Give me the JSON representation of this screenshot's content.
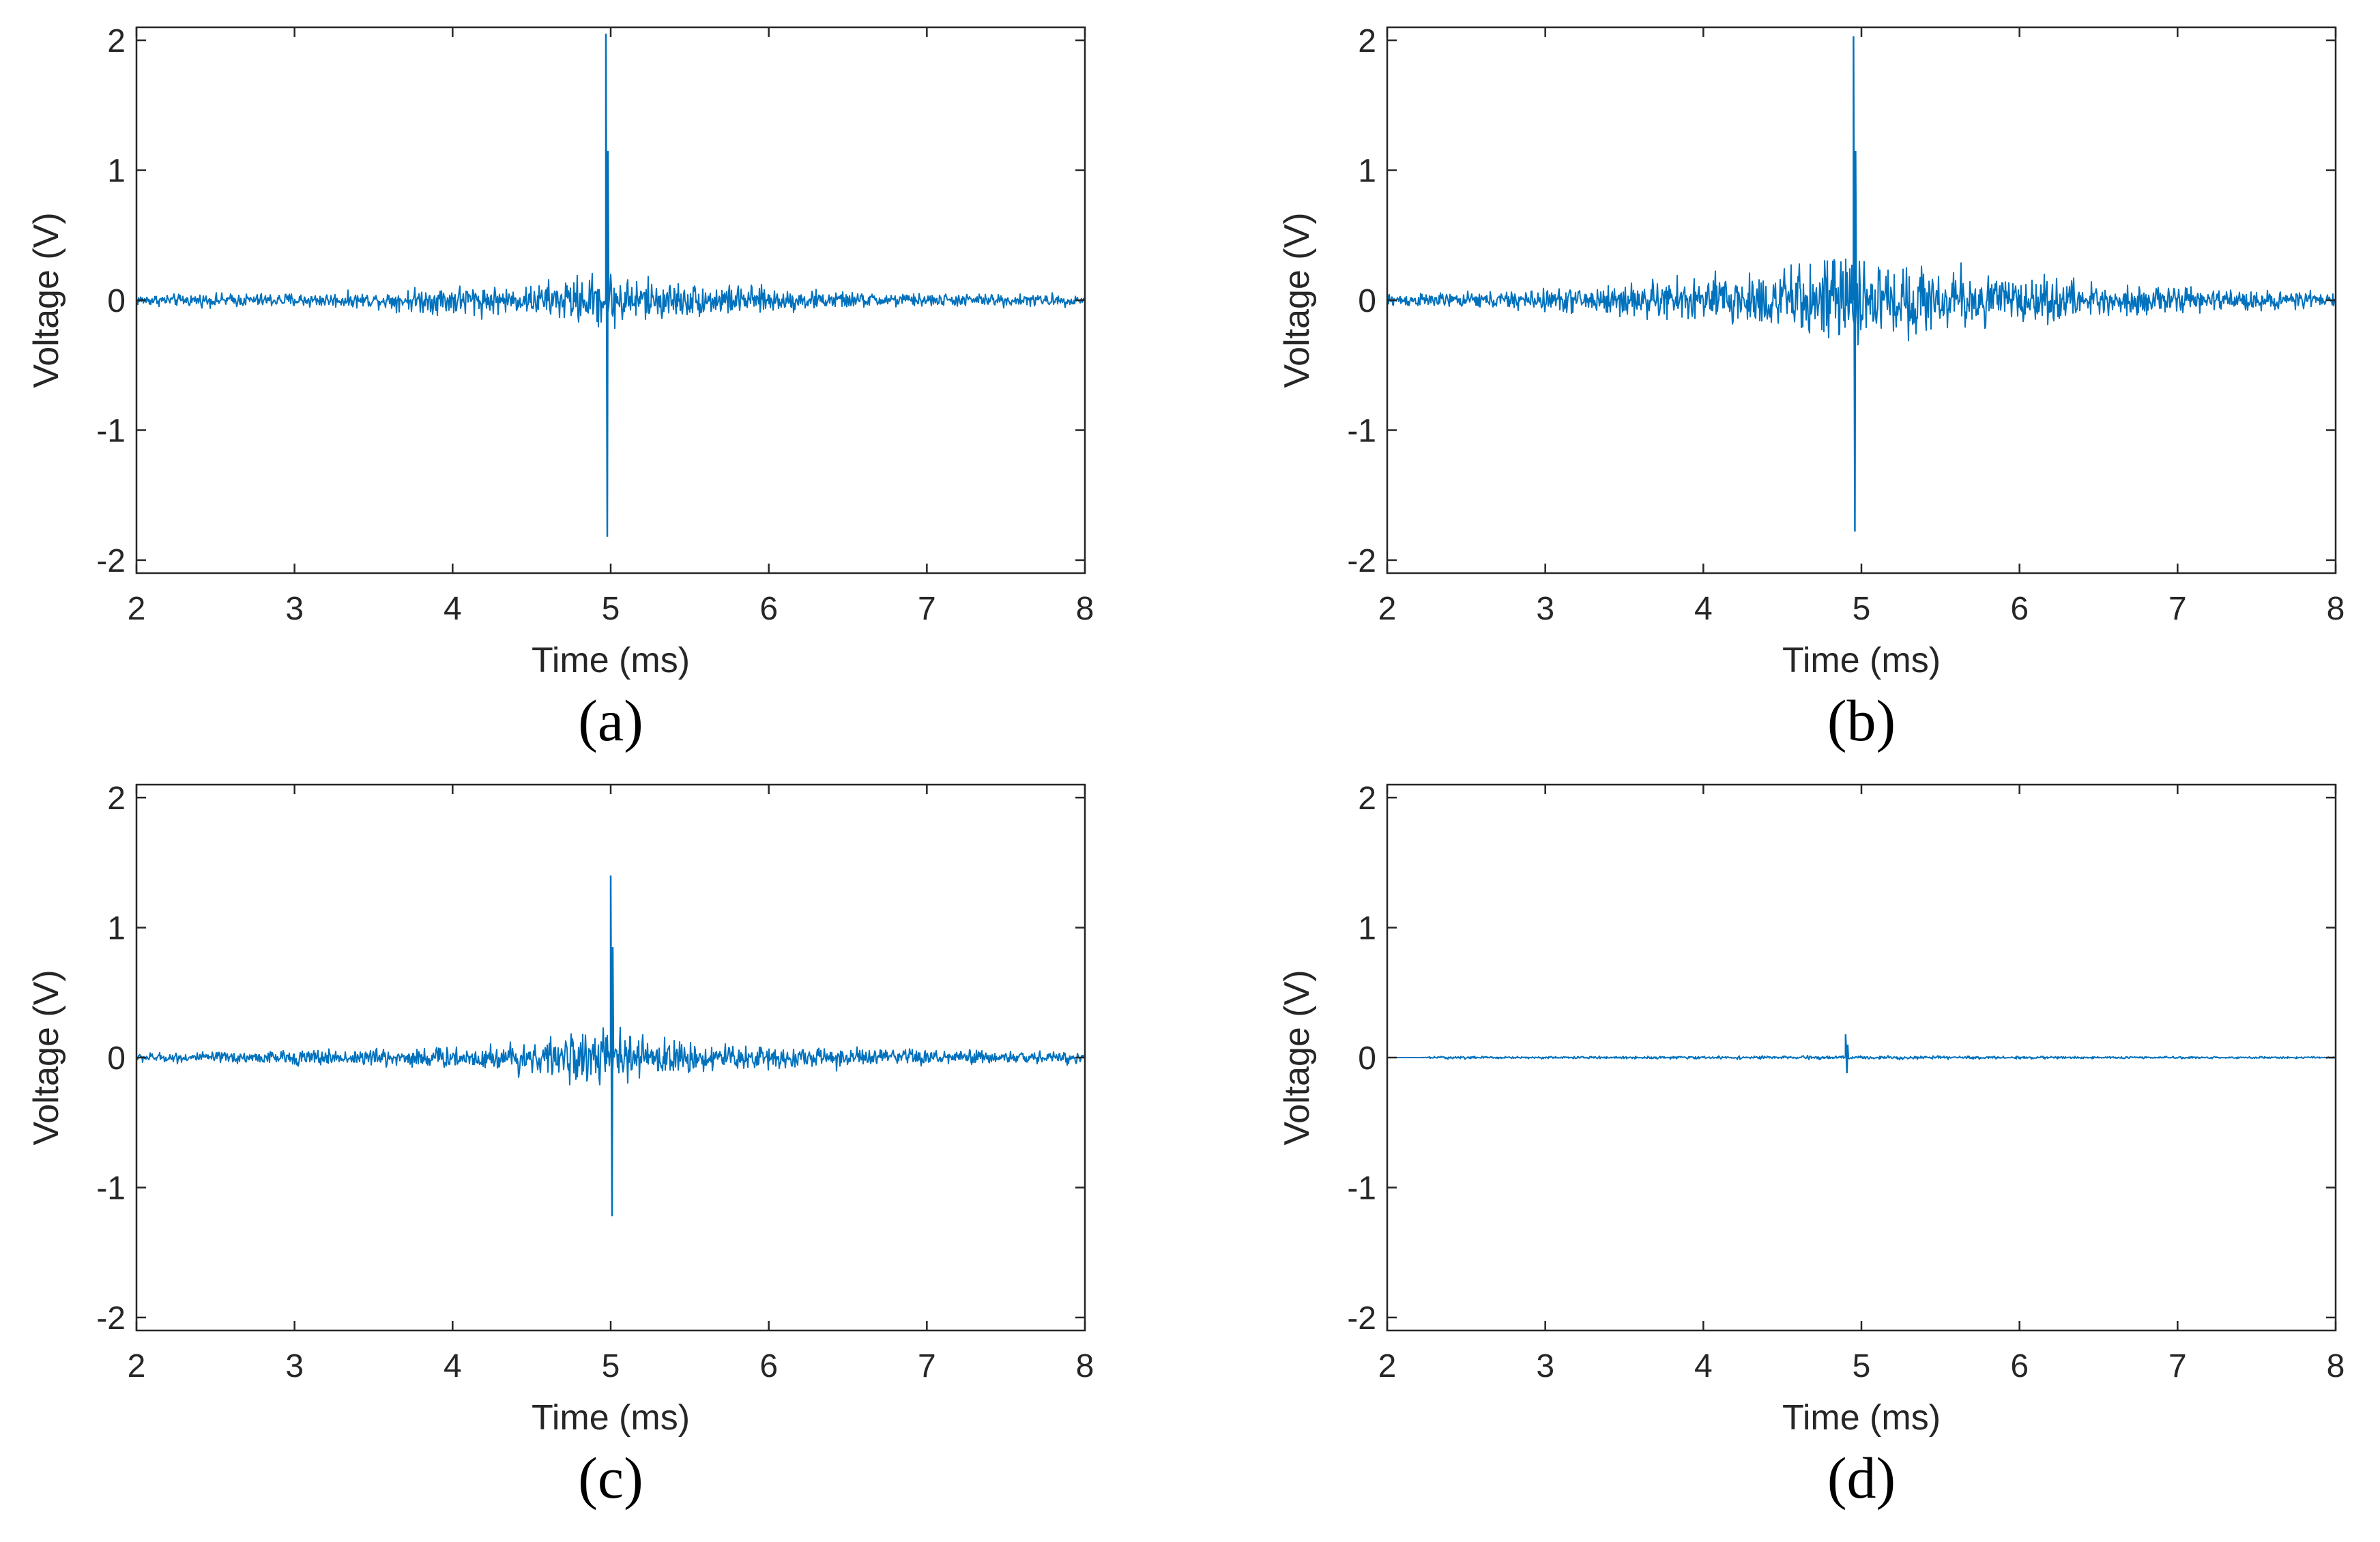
{
  "line_color": "#0072BD",
  "axis_color": "#262626",
  "chart_data": [
    {
      "type": "line",
      "caption": "(a)",
      "xlabel": "Time (ms)",
      "ylabel": "Voltage (V)",
      "xlim": [
        2,
        8
      ],
      "ylim": [
        -2.1,
        2.1
      ],
      "xticks": [
        2,
        3,
        4,
        5,
        6,
        7,
        8
      ],
      "yticks": [
        -2,
        -1,
        0,
        1,
        2
      ],
      "xtick_labels": [
        "2",
        "3",
        "4",
        "5",
        "6",
        "7",
        "8"
      ],
      "ytick_labels": [
        "-2",
        "-1",
        "0",
        "1",
        "2"
      ],
      "grid": false,
      "envelope": {
        "t": [
          2.0,
          2.5,
          3.0,
          3.5,
          3.8,
          4.1,
          4.4,
          4.6,
          4.8,
          5.0,
          5.2,
          5.5,
          5.8,
          6.2,
          6.6,
          7.0,
          7.5,
          8.0
        ],
        "amp": [
          0.06,
          0.07,
          0.08,
          0.08,
          0.14,
          0.18,
          0.13,
          0.2,
          0.26,
          0.3,
          0.24,
          0.18,
          0.16,
          0.11,
          0.08,
          0.07,
          0.07,
          0.06
        ]
      },
      "spike": {
        "t": 4.97,
        "max": 2.05,
        "min": -1.82,
        "secondary": 1.15
      }
    },
    {
      "type": "line",
      "caption": "(b)",
      "xlabel": "Time (ms)",
      "ylabel": "Voltage (V)",
      "xlim": [
        2,
        8
      ],
      "ylim": [
        -2.1,
        2.1
      ],
      "xticks": [
        2,
        3,
        4,
        5,
        6,
        7,
        8
      ],
      "yticks": [
        -2,
        -1,
        0,
        1,
        2
      ],
      "xtick_labels": [
        "2",
        "3",
        "4",
        "5",
        "6",
        "7",
        "8"
      ],
      "ytick_labels": [
        "-2",
        "-1",
        "0",
        "1",
        "2"
      ],
      "grid": false,
      "envelope": {
        "t": [
          2.0,
          2.5,
          3.0,
          3.5,
          4.0,
          4.5,
          4.8,
          5.0,
          5.3,
          5.6,
          6.0,
          6.5,
          7.0,
          7.5,
          8.0
        ],
        "amp": [
          0.07,
          0.08,
          0.12,
          0.18,
          0.26,
          0.35,
          0.45,
          0.46,
          0.38,
          0.34,
          0.26,
          0.18,
          0.13,
          0.1,
          0.08
        ]
      },
      "spike": {
        "t": 4.95,
        "max": 2.03,
        "min": -1.78,
        "secondary": 1.15
      }
    },
    {
      "type": "line",
      "caption": "(c)",
      "xlabel": "Time (ms)",
      "ylabel": "Voltage (V)",
      "xlim": [
        2,
        8
      ],
      "ylim": [
        -2.1,
        2.1
      ],
      "xticks": [
        2,
        3,
        4,
        5,
        6,
        7,
        8
      ],
      "yticks": [
        -2,
        -1,
        0,
        1,
        2
      ],
      "xtick_labels": [
        "2",
        "3",
        "4",
        "5",
        "6",
        "7",
        "8"
      ],
      "ytick_labels": [
        "-2",
        "-1",
        "0",
        "1",
        "2"
      ],
      "grid": false,
      "envelope": {
        "t": [
          2.0,
          2.5,
          3.0,
          3.5,
          4.0,
          4.5,
          4.8,
          5.0,
          5.3,
          5.7,
          6.2,
          6.7,
          7.2,
          8.0
        ],
        "amp": [
          0.05,
          0.06,
          0.08,
          0.1,
          0.12,
          0.18,
          0.25,
          0.3,
          0.2,
          0.15,
          0.12,
          0.1,
          0.08,
          0.06
        ]
      },
      "spike": {
        "t": 5.0,
        "max": 1.4,
        "min": -1.22,
        "secondary": 0.85
      }
    },
    {
      "type": "line",
      "caption": "(d)",
      "xlabel": "Time (ms)",
      "ylabel": "Voltage (V)",
      "xlim": [
        2,
        8
      ],
      "ylim": [
        -2.1,
        2.1
      ],
      "xticks": [
        2,
        3,
        4,
        5,
        6,
        7,
        8
      ],
      "yticks": [
        -2,
        -1,
        0,
        1,
        2
      ],
      "xtick_labels": [
        "2",
        "3",
        "4",
        "5",
        "6",
        "7",
        "8"
      ],
      "ytick_labels": [
        "-2",
        "-1",
        "0",
        "1",
        "2"
      ],
      "grid": false,
      "envelope": {
        "t": [
          2.0,
          2.2,
          2.3,
          3.0,
          4.0,
          4.8,
          5.0,
          5.5,
          6.5,
          8.0
        ],
        "amp": [
          0.0,
          0.0,
          0.015,
          0.012,
          0.014,
          0.02,
          0.02,
          0.015,
          0.012,
          0.01
        ]
      },
      "spike": {
        "t": 4.9,
        "max": 0.18,
        "min": -0.12,
        "secondary": 0.1
      }
    }
  ]
}
